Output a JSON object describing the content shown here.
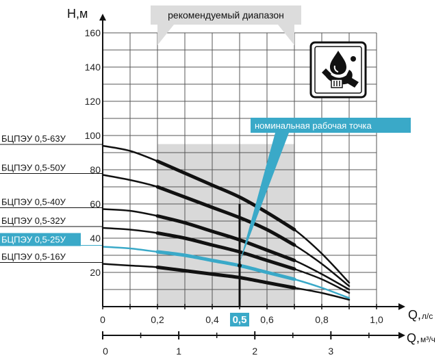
{
  "chart_data": {
    "type": "line",
    "y_axis": {
      "label": "Н,м",
      "ticks": [
        "20",
        "40",
        "60",
        "80",
        "100",
        "120",
        "140",
        "160"
      ],
      "ylim": [
        0,
        160
      ]
    },
    "x_axis_flow_ls": {
      "label": "Q,",
      "unit": "л/с",
      "ticks": [
        "0",
        "0,2",
        "0,4",
        "0,6",
        "0,8",
        "1,0"
      ],
      "xlim": [
        0,
        1.0
      ]
    },
    "x_axis_flow_m3h": {
      "label": "Q,",
      "unit": "м³/ч",
      "ticks": [
        "0",
        "1",
        "2",
        "3"
      ]
    },
    "grid": true,
    "recommended_range": {
      "label": "рекомендуемый диапазон",
      "from": 0.2,
      "to": 0.7
    },
    "nominal_point": {
      "label": "номинальная рабочая точка",
      "x": 0.5,
      "x_label": "0,5"
    },
    "series": [
      {
        "name": "БЦПЭУ 0,5-63У",
        "x": [
          0,
          0.1,
          0.2,
          0.3,
          0.4,
          0.5,
          0.6,
          0.7,
          0.8,
          0.9
        ],
        "values": [
          94,
          91,
          85,
          78,
          71,
          64,
          55,
          45,
          31,
          14
        ]
      },
      {
        "name": "БЦПЭУ 0,5-50У",
        "x": [
          0,
          0.1,
          0.2,
          0.3,
          0.4,
          0.5,
          0.6,
          0.7,
          0.8,
          0.9
        ],
        "values": [
          77,
          74,
          70,
          64,
          58,
          52,
          45,
          36,
          25,
          12
        ]
      },
      {
        "name": "БЦПЭУ 0,5-40У",
        "x": [
          0,
          0.1,
          0.2,
          0.3,
          0.4,
          0.5,
          0.6,
          0.7,
          0.8,
          0.9
        ],
        "values": [
          57,
          56,
          53,
          49,
          44,
          39,
          33,
          27,
          19,
          10
        ]
      },
      {
        "name": "БЦПЭУ 0,5-32У",
        "x": [
          0,
          0.1,
          0.2,
          0.3,
          0.4,
          0.5,
          0.6,
          0.7,
          0.8,
          0.9
        ],
        "values": [
          46,
          45,
          43,
          40,
          36,
          32,
          27,
          22,
          16,
          8
        ]
      },
      {
        "name": "БЦПЭУ 0,5-25У",
        "x": [
          0,
          0.1,
          0.2,
          0.3,
          0.4,
          0.5,
          0.6,
          0.7,
          0.8,
          0.9
        ],
        "values": [
          35,
          34,
          32,
          30,
          27,
          24,
          20,
          16,
          11,
          5
        ],
        "highlight": true
      },
      {
        "name": "БЦПЭУ 0,5-16У",
        "x": [
          0,
          0.1,
          0.2,
          0.3,
          0.4,
          0.5,
          0.6,
          0.7,
          0.8,
          0.9
        ],
        "values": [
          25,
          24,
          23,
          21,
          19,
          17,
          14,
          11,
          8,
          4
        ]
      }
    ],
    "colors": {
      "curve": "#111111",
      "highlight": "#3aa9c8",
      "range_fill": "#d9d9d9",
      "grid": "#555555"
    },
    "icon": "oil-drop-wrench-icon"
  }
}
